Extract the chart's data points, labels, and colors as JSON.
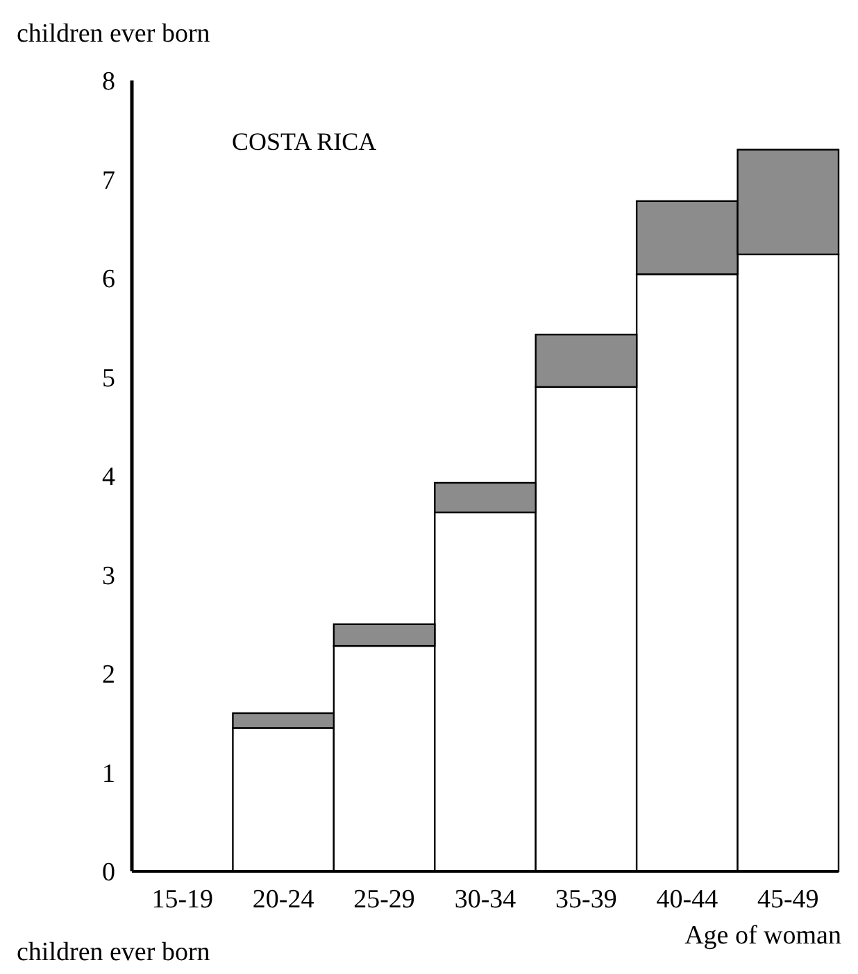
{
  "chart_data": {
    "type": "bar",
    "title": "COSTA RICA",
    "ylabel": "children ever born",
    "xlabel": "Age of woman",
    "annotations": [
      "children ever born"
    ],
    "categories": [
      "15-19",
      "20-24",
      "25-29",
      "30-34",
      "35-39",
      "40-44",
      "45-49"
    ],
    "stacked": true,
    "series": [
      {
        "color": "#ffffff",
        "values": [
          0,
          1.45,
          2.28,
          3.63,
          4.9,
          6.04,
          6.24
        ]
      },
      {
        "color": "#8c8c8c",
        "values": [
          0,
          0.15,
          0.22,
          0.3,
          0.53,
          0.74,
          1.06
        ]
      }
    ],
    "ylim": [
      0,
      8
    ],
    "yticks": [
      0,
      1,
      2,
      3,
      4,
      5,
      6,
      7,
      8
    ],
    "grid": false
  }
}
